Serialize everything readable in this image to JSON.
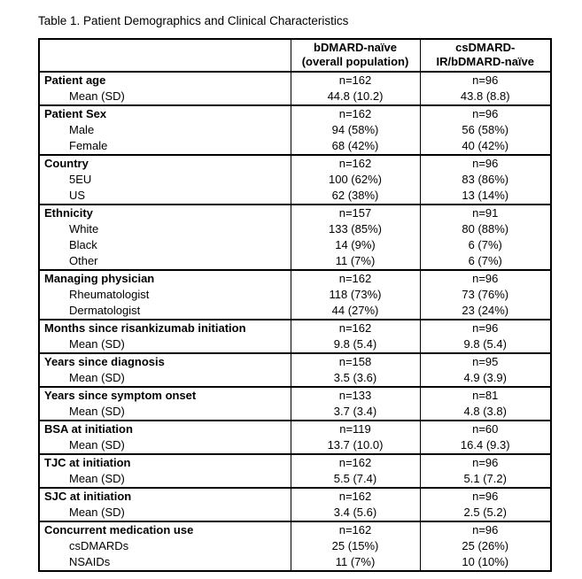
{
  "page": {
    "title": "Table 1. Patient Demographics and Clinical Characteristics"
  },
  "table": {
    "header": {
      "col1": "",
      "col2_line1": "bDMARD-naïve",
      "col2_line2": "(overall population)",
      "col3_line1": "csDMARD-",
      "col3_line2": "IR/bDMARD-naïve"
    },
    "sections": [
      {
        "category": "Patient age",
        "n_values": [
          "n=162",
          "n=96"
        ],
        "rows": [
          {
            "label": "Mean (SD)",
            "values": [
              "44.8 (10.2)",
              "43.8 (8.8)"
            ]
          }
        ]
      },
      {
        "category": "Patient Sex",
        "n_values": [
          "n=162",
          "n=96"
        ],
        "rows": [
          {
            "label": "Male",
            "values": [
              "94 (58%)",
              "56 (58%)"
            ]
          },
          {
            "label": "Female",
            "values": [
              "68 (42%)",
              "40 (42%)"
            ]
          }
        ]
      },
      {
        "category": "Country",
        "n_values": [
          "n=162",
          "n=96"
        ],
        "rows": [
          {
            "label": "5EU",
            "values": [
              "100 (62%)",
              "83 (86%)"
            ]
          },
          {
            "label": "US",
            "values": [
              "62 (38%)",
              "13 (14%)"
            ]
          }
        ]
      },
      {
        "category": "Ethnicity",
        "n_values": [
          "n=157",
          "n=91"
        ],
        "rows": [
          {
            "label": "White",
            "values": [
              "133 (85%)",
              "80 (88%)"
            ]
          },
          {
            "label": "Black",
            "values": [
              "14 (9%)",
              "6 (7%)"
            ]
          },
          {
            "label": "Other",
            "values": [
              "11 (7%)",
              "6 (7%)"
            ]
          }
        ]
      },
      {
        "category": "Managing physician",
        "n_values": [
          "n=162",
          "n=96"
        ],
        "rows": [
          {
            "label": "Rheumatologist",
            "values": [
              "118 (73%)",
              "73 (76%)"
            ]
          },
          {
            "label": "Dermatologist",
            "values": [
              "44 (27%)",
              "23 (24%)"
            ]
          }
        ]
      },
      {
        "category": "Months since risankizumab initiation",
        "n_values": [
          "n=162",
          "n=96"
        ],
        "rows": [
          {
            "label": "Mean (SD)",
            "values": [
              "9.8 (5.4)",
              "9.8 (5.4)"
            ]
          }
        ]
      },
      {
        "category": "Years since diagnosis",
        "n_values": [
          "n=158",
          "n=95"
        ],
        "rows": [
          {
            "label": "Mean (SD)",
            "values": [
              "3.5 (3.6)",
              "4.9 (3.9)"
            ]
          }
        ]
      },
      {
        "category": "Years since symptom onset",
        "n_values": [
          "n=133",
          "n=81"
        ],
        "rows": [
          {
            "label": "Mean (SD)",
            "values": [
              "3.7 (3.4)",
              "4.8 (3.8)"
            ]
          }
        ]
      },
      {
        "category": "BSA at initiation",
        "n_values": [
          "n=119",
          "n=60"
        ],
        "rows": [
          {
            "label": "Mean (SD)",
            "values": [
              "13.7 (10.0)",
              "16.4 (9.3)"
            ]
          }
        ]
      },
      {
        "category": "TJC at initiation",
        "n_values": [
          "n=162",
          "n=96"
        ],
        "rows": [
          {
            "label": "Mean (SD)",
            "values": [
              "5.5 (7.4)",
              "5.1 (7.2)"
            ]
          }
        ]
      },
      {
        "category": "SJC at initiation",
        "n_values": [
          "n=162",
          "n=96"
        ],
        "rows": [
          {
            "label": "Mean (SD)",
            "values": [
              "3.4 (5.6)",
              "2.5 (5.2)"
            ]
          }
        ]
      },
      {
        "category": "Concurrent medication use",
        "n_values": [
          "n=162",
          "n=96"
        ],
        "rows": [
          {
            "label": "csDMARDs",
            "values": [
              "25 (15%)",
              "25 (26%)"
            ]
          },
          {
            "label": "NSAIDs",
            "values": [
              "11 (7%)",
              "10 (10%)"
            ]
          }
        ]
      }
    ]
  }
}
